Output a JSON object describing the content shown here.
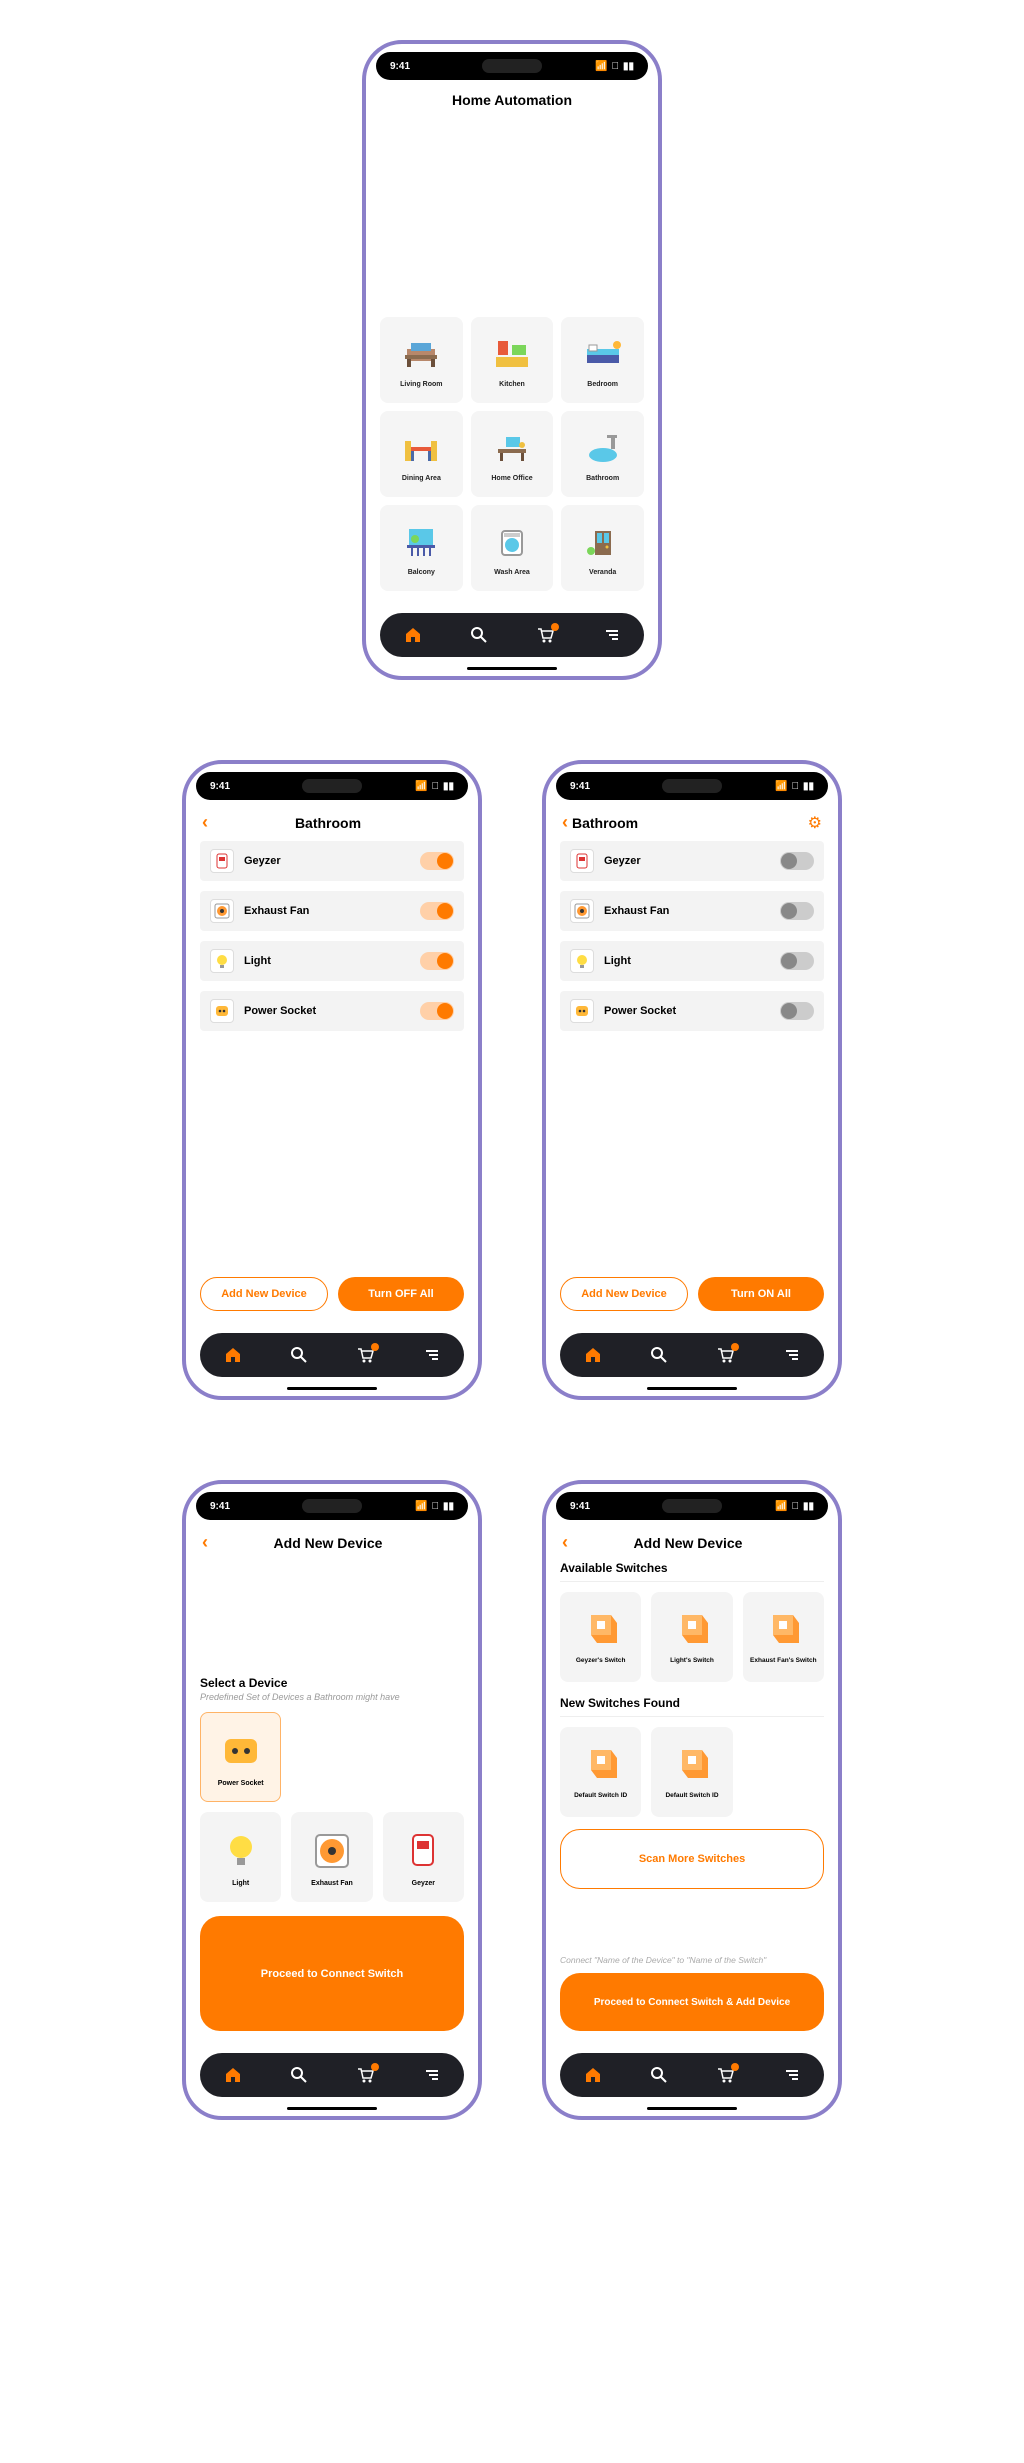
{
  "colors": {
    "accent": "#ff7a00",
    "frame": "#8b7fc9",
    "nav": "#1f2026"
  },
  "status": {
    "time": "9:41"
  },
  "screen1": {
    "title": "Home Automation",
    "rooms": [
      {
        "label": "Living Room"
      },
      {
        "label": "Kitchen"
      },
      {
        "label": "Bedroom"
      },
      {
        "label": "Dining Area"
      },
      {
        "label": "Home Office"
      },
      {
        "label": "Bathroom"
      },
      {
        "label": "Balcony"
      },
      {
        "label": "Wash Area"
      },
      {
        "label": "Veranda"
      }
    ]
  },
  "screen2": {
    "title": "Bathroom",
    "devices": [
      {
        "name": "Geyzer",
        "on": true
      },
      {
        "name": "Exhaust Fan",
        "on": true
      },
      {
        "name": "Light",
        "on": true
      },
      {
        "name": "Power Socket",
        "on": true
      }
    ],
    "addBtn": "Add New Device",
    "toggleBtn": "Turn OFF All"
  },
  "screen3": {
    "title": "Bathroom",
    "devices": [
      {
        "name": "Geyzer",
        "on": false
      },
      {
        "name": "Exhaust Fan",
        "on": false
      },
      {
        "name": "Light",
        "on": false
      },
      {
        "name": "Power Socket",
        "on": false
      }
    ],
    "addBtn": "Add New Device",
    "toggleBtn": "Turn ON All"
  },
  "screen4": {
    "title": "Add New Device",
    "sectionTitle": "Select a Device",
    "sectionSub": "Predefined Set of Devices a Bathroom might have",
    "devices": [
      {
        "label": "Power Socket",
        "selected": true
      },
      {
        "label": "Light",
        "selected": false
      },
      {
        "label": "Exhaust Fan",
        "selected": false
      },
      {
        "label": "Geyzer",
        "selected": false
      }
    ],
    "proceedBtn": "Proceed to Connect Switch"
  },
  "screen5": {
    "title": "Add New Device",
    "availTitle": "Available Switches",
    "availSwitches": [
      {
        "label": "Geyzer's Switch"
      },
      {
        "label": "Light's Switch"
      },
      {
        "label": "Exhaust Fan's Switch"
      }
    ],
    "newTitle": "New Switches Found",
    "newSwitches": [
      {
        "label": "Default Switch ID"
      },
      {
        "label": "Default Switch ID"
      }
    ],
    "scanBtn": "Scan More Switches",
    "hint": "Connect \"Name of the Device\" to \"Name of the Switch\"",
    "proceedBtn": "Proceed to Connect Switch & Add Device"
  }
}
